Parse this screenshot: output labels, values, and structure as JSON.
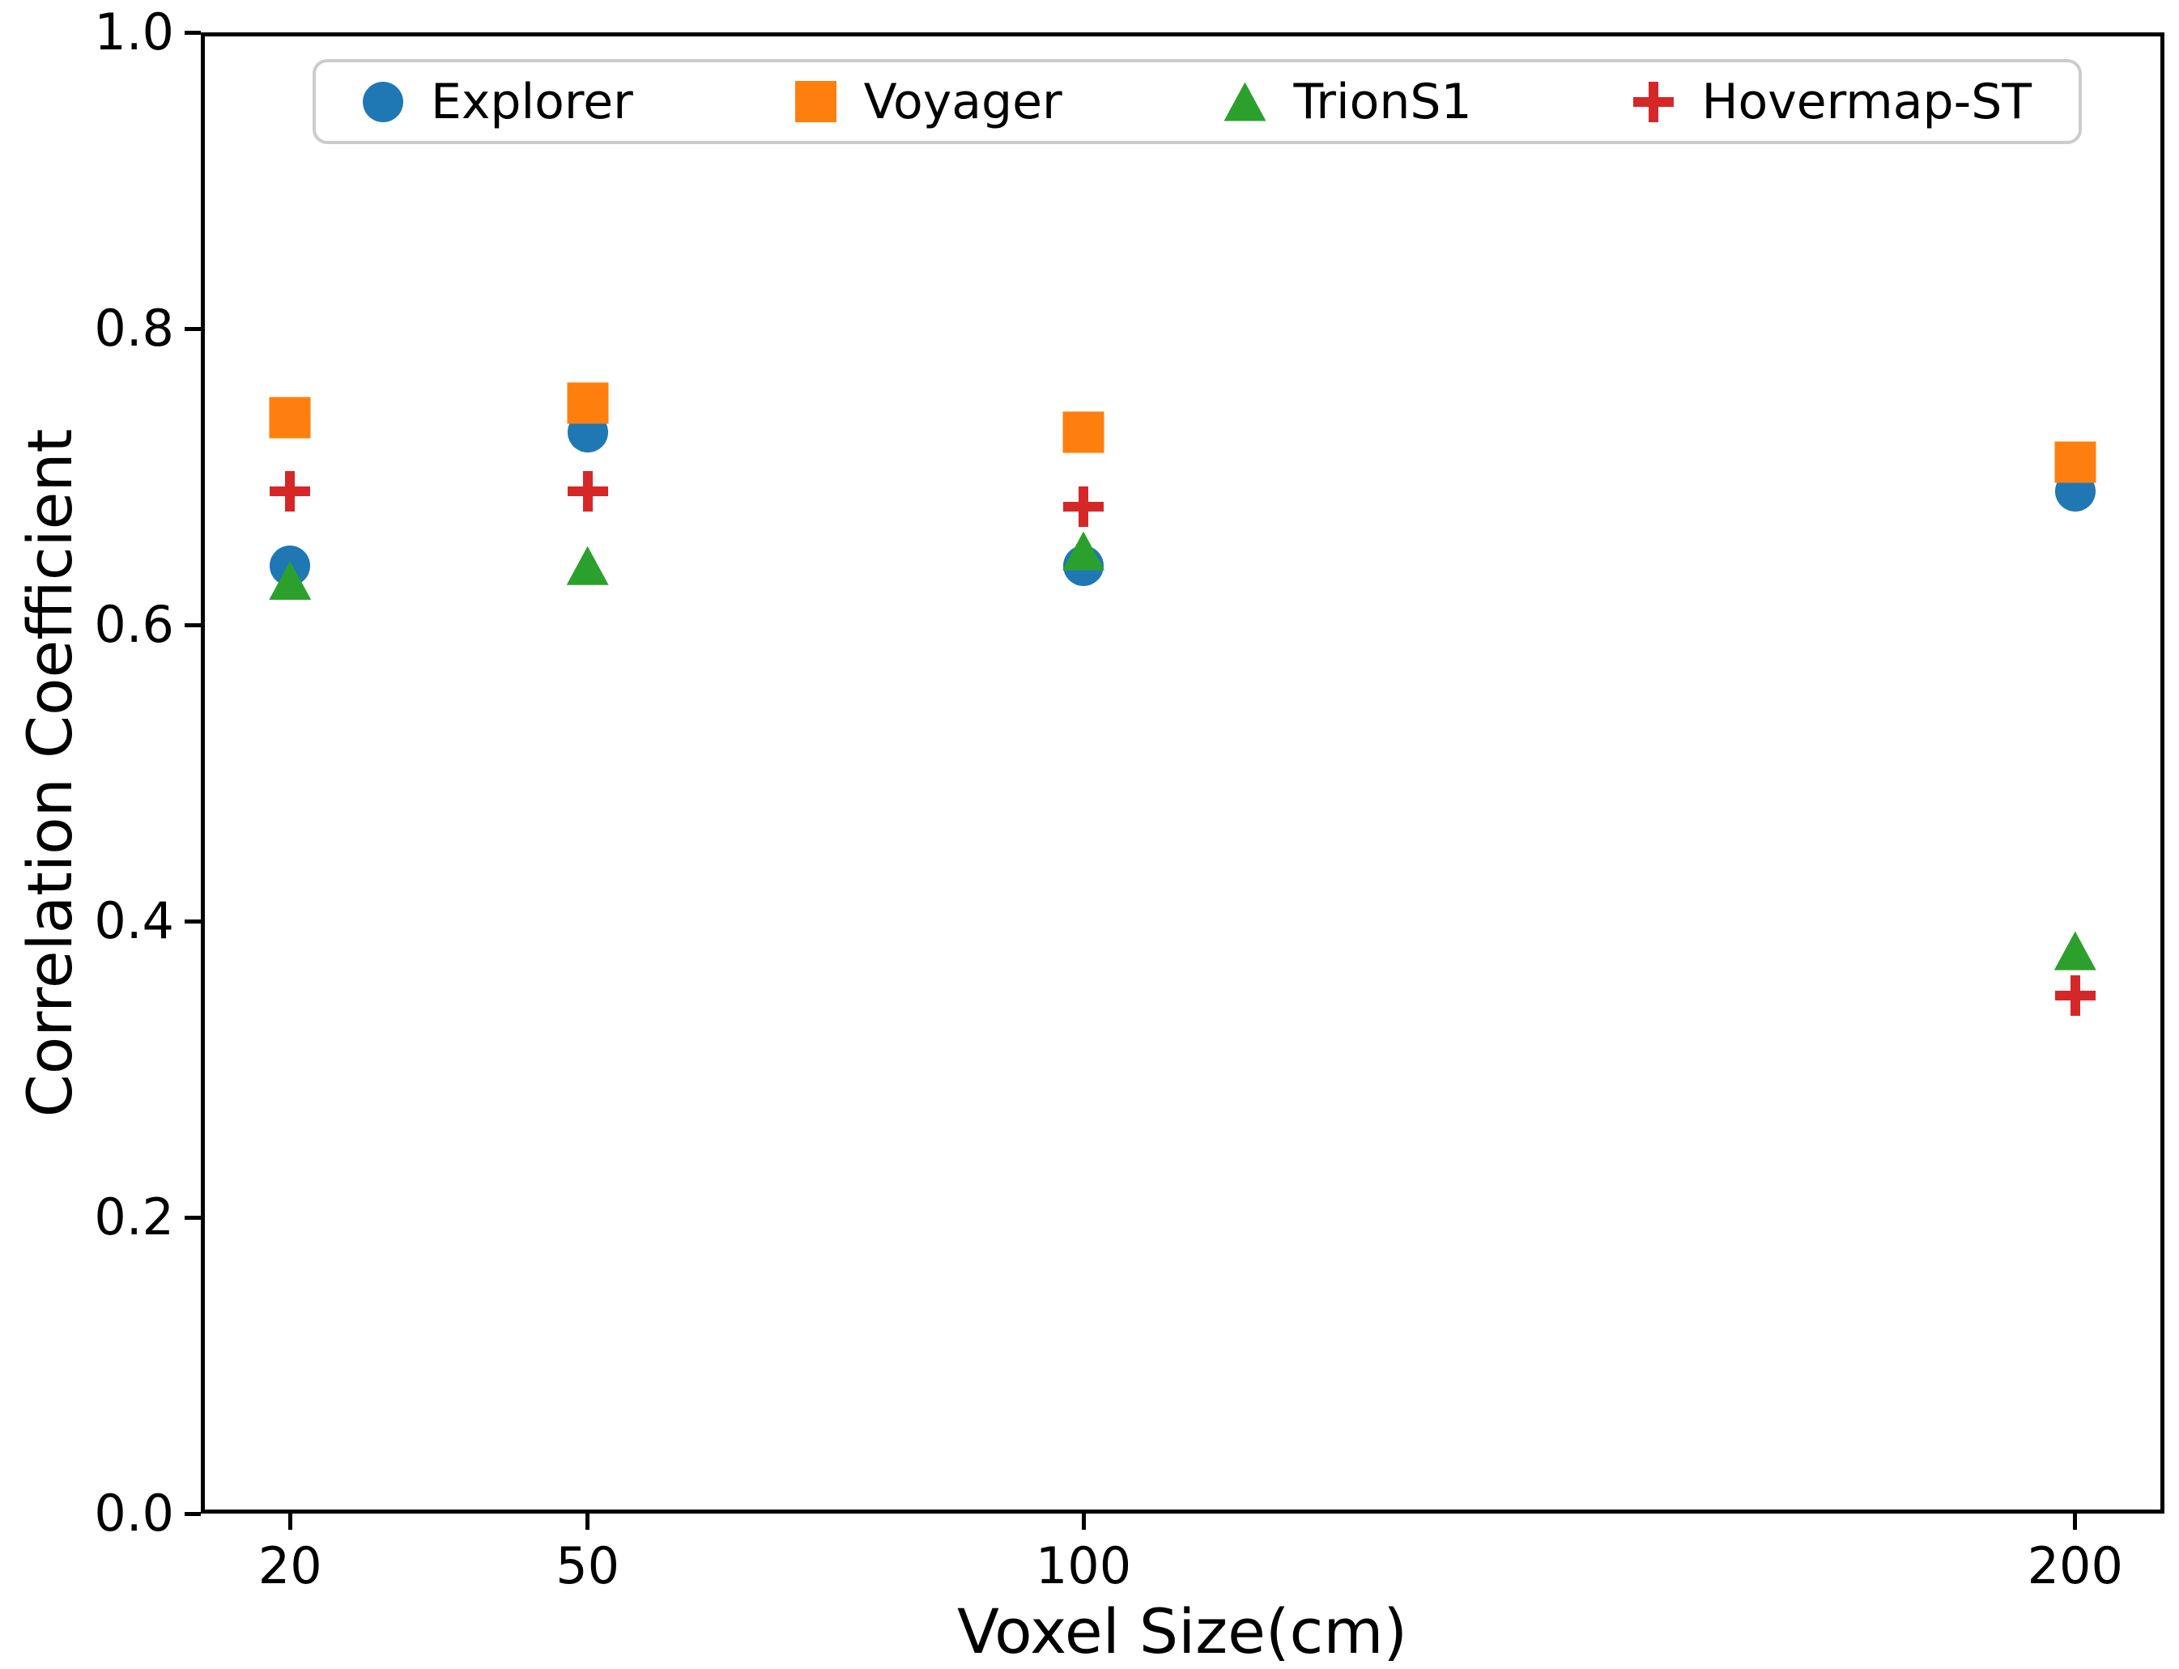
{
  "chart_data": {
    "type": "scatter",
    "x": [
      20,
      50,
      100,
      200
    ],
    "series": [
      {
        "name": "Explorer",
        "marker": "circle",
        "color": "#1f77b4",
        "values": [
          0.64,
          0.73,
          0.64,
          0.69
        ]
      },
      {
        "name": "Voyager",
        "marker": "square",
        "color": "#ff7f0e",
        "values": [
          0.74,
          0.75,
          0.73,
          0.71
        ]
      },
      {
        "name": "TrionS1",
        "marker": "triangle",
        "color": "#2ca02c",
        "values": [
          0.63,
          0.64,
          0.65,
          0.38
        ]
      },
      {
        "name": "Hovermap-ST",
        "marker": "plus",
        "color": "#d62728",
        "values": [
          0.69,
          0.69,
          0.68,
          0.35
        ]
      }
    ],
    "title": "",
    "xlabel": "Voxel Size(cm)",
    "ylabel": "Correlation Coefficient",
    "xlim": [
      11,
      209
    ],
    "ylim": [
      0.0,
      1.0
    ],
    "xticks": [
      20,
      50,
      100,
      200
    ],
    "xtick_labels": [
      "20",
      "50",
      "100",
      "200"
    ],
    "yticks": [
      0.0,
      0.2,
      0.4,
      0.6,
      0.8,
      1.0
    ],
    "ytick_labels": [
      "0.0",
      "0.2",
      "0.4",
      "0.6",
      "0.8",
      "1.0"
    ],
    "grid": false,
    "legend_position": "upper center, horizontal, 4 columns",
    "axis_color": "#000000",
    "legend_border_color": "#cccccc"
  }
}
